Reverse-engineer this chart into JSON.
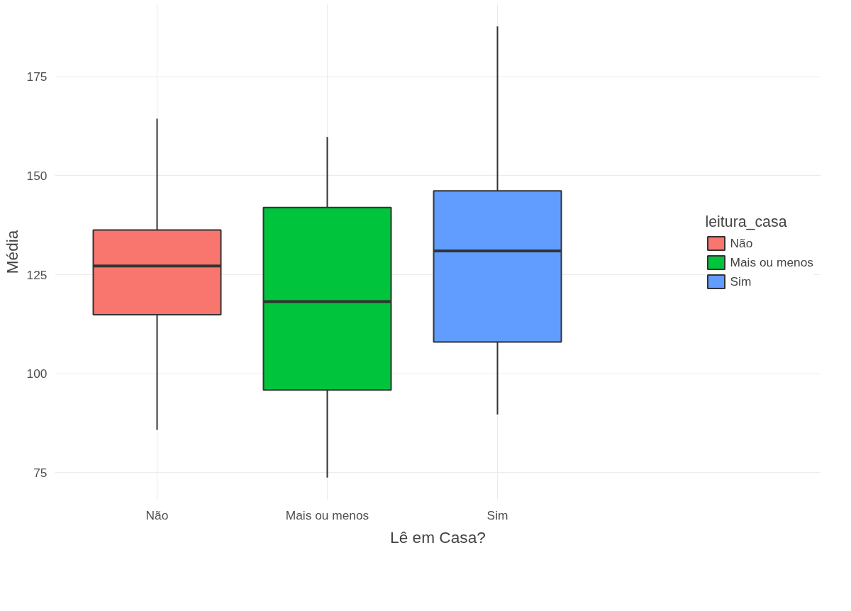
{
  "chart_data": {
    "type": "box",
    "xlabel": "Lê em Casa?",
    "ylabel": "Média",
    "legend_title": "leitura_casa",
    "categories": [
      "Não",
      "Mais ou menos",
      "Sim"
    ],
    "series": [
      {
        "name": "Não",
        "color": "#f8766d",
        "boxes": [
          {
            "low": 85.8,
            "q1": 114.9,
            "median": 127.2,
            "q3": 136.3,
            "high": 164.4
          },
          null,
          null
        ]
      },
      {
        "name": "Mais ou menos",
        "color": "#00c43c",
        "boxes": [
          null,
          {
            "low": 73.8,
            "q1": 95.9,
            "median": 118.2,
            "q3": 142,
            "high": 159.8
          },
          null
        ]
      },
      {
        "name": "Sim",
        "color": "#619cff",
        "boxes": [
          null,
          null,
          {
            "low": 89.7,
            "q1": 108,
            "median": 131,
            "q3": 146.2,
            "high": 187.7
          }
        ]
      }
    ],
    "ylim": [
      68.1,
      193.4
    ],
    "yticks": [
      75,
      100,
      125,
      150,
      175
    ],
    "grid": true,
    "legend": "right"
  }
}
